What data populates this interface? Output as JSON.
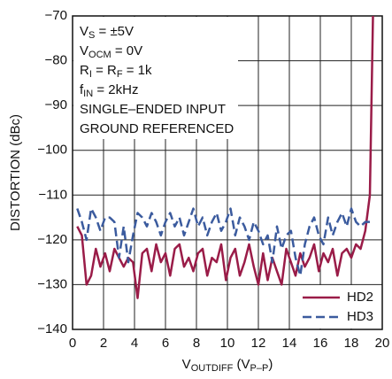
{
  "chart_data": {
    "type": "line",
    "x_label": [
      "V",
      "OUTDIFF",
      " (V",
      "P–P",
      ")"
    ],
    "y_label": "DISTORTION (dBc)",
    "annotations": [
      [
        "V",
        "S",
        " = ±5V"
      ],
      [
        "V",
        "OCM",
        " = 0V"
      ],
      [
        "R",
        "I",
        " = R",
        "F",
        " = 1k"
      ],
      [
        "f",
        "IN",
        " = 2kHz"
      ],
      [
        "SINGLE–ENDED INPUT"
      ],
      [
        "GROUND REFERENCED"
      ]
    ],
    "x": [
      0.3,
      0.6,
      0.9,
      1.2,
      1.5,
      1.8,
      2.1,
      2.4,
      2.7,
      3.0,
      3.3,
      3.6,
      3.9,
      4.2,
      4.5,
      4.8,
      5.1,
      5.4,
      5.7,
      6.0,
      6.3,
      6.6,
      6.9,
      7.2,
      7.5,
      7.8,
      8.1,
      8.4,
      8.7,
      9.0,
      9.3,
      9.6,
      9.9,
      10.2,
      10.5,
      10.8,
      11.1,
      11.4,
      11.7,
      12.0,
      12.3,
      12.6,
      12.9,
      13.2,
      13.5,
      13.8,
      14.1,
      14.4,
      14.7,
      15.0,
      15.3,
      15.6,
      15.9,
      16.2,
      16.5,
      16.8,
      17.1,
      17.4,
      17.7,
      18.0,
      18.3,
      18.6,
      18.9,
      19.2,
      19.4
    ],
    "series": [
      {
        "name": "HD2",
        "color": "#9a1c48",
        "dashed": false,
        "values": [
          -117,
          -119,
          -130,
          -128,
          -122,
          -126,
          -123,
          -127,
          -122,
          -124,
          -126,
          -124,
          -125,
          -133,
          -123,
          -122,
          -127,
          -121,
          -125,
          -123,
          -128,
          -122,
          -121,
          -126,
          -124,
          -127,
          -123,
          -122,
          -128,
          -124,
          -125,
          -121,
          -129,
          -124,
          -122,
          -128,
          -125,
          -121,
          -126,
          -130,
          -123,
          -129,
          -124,
          -127,
          -130,
          -122,
          -125,
          -128,
          -123,
          -126,
          -124,
          -121,
          -127,
          -123,
          -125,
          -122,
          -128,
          -123,
          -122,
          -124,
          -121,
          -122,
          -118,
          -110,
          -70
        ]
      },
      {
        "name": "HD3",
        "color": "#3b5b9e",
        "dashed": true,
        "values": [
          -113,
          -116,
          -120,
          -113,
          -115,
          -118,
          -115,
          -115,
          -116,
          -124,
          -117,
          -125,
          -119,
          -114,
          -115,
          -117,
          -114,
          -116,
          -119,
          -116,
          -114,
          -117,
          -115,
          -119,
          -116,
          -113,
          -117,
          -115,
          -119,
          -116,
          -114,
          -118,
          -116,
          -113,
          -119,
          -115,
          -117,
          -120,
          -116,
          -118,
          -121,
          -119,
          -125,
          -117,
          -122,
          -119,
          -118,
          -124,
          -128,
          -121,
          -117,
          -115,
          -119,
          -121,
          -115,
          -119,
          -116,
          -114,
          -117,
          -113,
          -116,
          -117,
          -116,
          -116,
          null
        ]
      }
    ],
    "xlim": [
      0,
      20
    ],
    "xticks": [
      0,
      2,
      4,
      6,
      8,
      10,
      12,
      14,
      16,
      18,
      20
    ],
    "ylim": [
      -140,
      -70
    ],
    "yticks": [
      {
        "value": -140,
        "label": "−140"
      },
      {
        "value": -130,
        "label": "−130"
      },
      {
        "value": -120,
        "label": "−120"
      },
      {
        "value": -110,
        "label": "−110"
      },
      {
        "value": -100,
        "label": "−100"
      },
      {
        "value": -90,
        "label": "−90"
      },
      {
        "value": -80,
        "label": "−80"
      },
      {
        "value": -70,
        "label": "−70"
      }
    ],
    "grid": true,
    "legend": "lower right"
  }
}
